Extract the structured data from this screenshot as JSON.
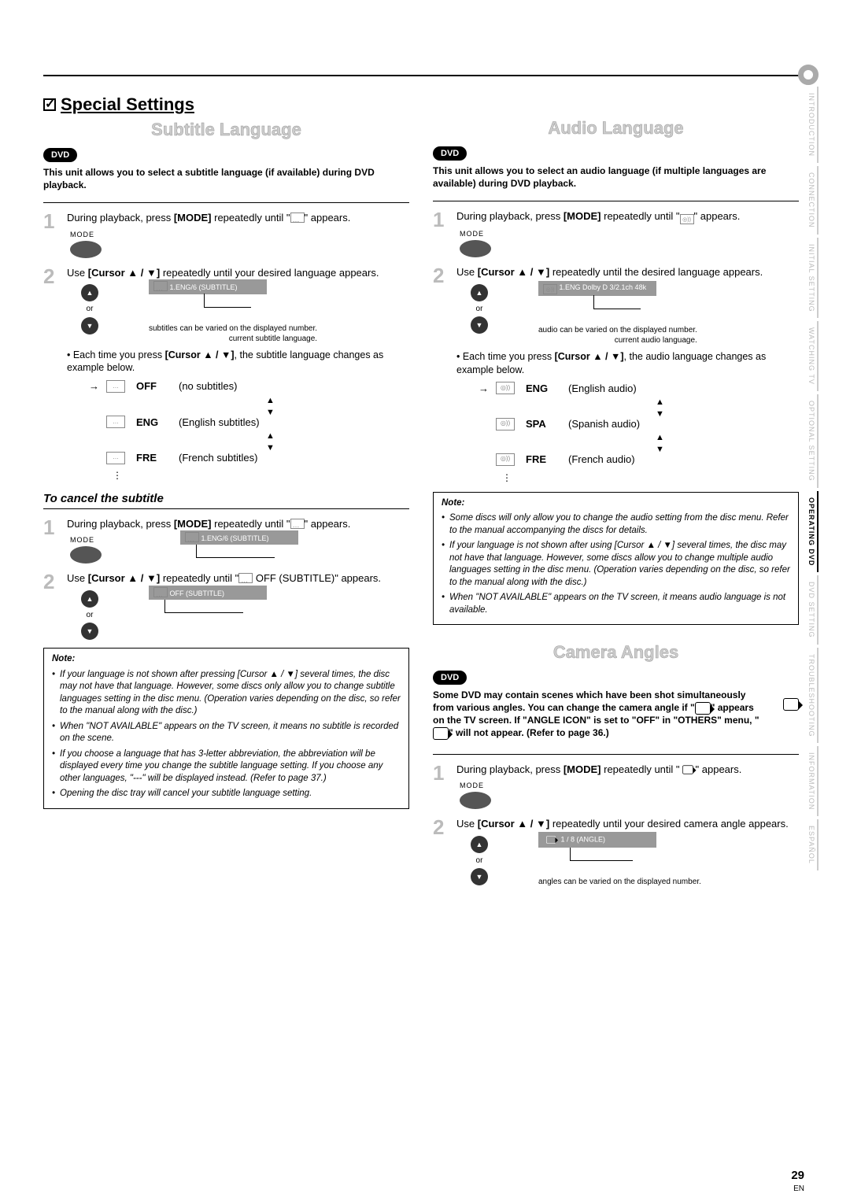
{
  "page_number": "29",
  "page_lang": "EN",
  "main_heading": "Special Settings",
  "side_tabs": [
    {
      "label": "INTRODUCTION",
      "active": false
    },
    {
      "label": "CONNECTION",
      "active": false
    },
    {
      "label": "INITIAL SETTING",
      "active": false
    },
    {
      "label": "WATCHING TV",
      "active": false
    },
    {
      "label": "OPTIONAL SETTING",
      "active": false
    },
    {
      "label": "OPERATING DVD",
      "active": true
    },
    {
      "label": "DVD SETTING",
      "active": false
    },
    {
      "label": "TROUBLESHOOTING",
      "active": false
    },
    {
      "label": "INFORMATION",
      "active": false
    },
    {
      "label": "ESPAÑOL",
      "active": false
    }
  ],
  "dvd_badge": "DVD",
  "mode_label": "MODE",
  "or_label": "or",
  "subtitle": {
    "title": "Subtitle Language",
    "intro": "This unit allows you to select a subtitle language (if available) during DVD playback.",
    "step1": "During playback, press [MODE] repeatedly until \" \" appears.",
    "step2": "Use [Cursor ▲ / ▼] repeatedly until your desired language appears.",
    "osd_text": "1.ENG/6   (SUBTITLE)",
    "osd_caption1": "subtitles can be varied on the displayed number.",
    "osd_caption2": "current subtitle language.",
    "change_text": "Each time you press [Cursor ▲ / ▼], the subtitle language changes as example below.",
    "rows": [
      {
        "code": "OFF",
        "desc": "(no subtitles)"
      },
      {
        "code": "ENG",
        "desc": "(English subtitles)"
      },
      {
        "code": "FRE",
        "desc": "(French subtitles)"
      }
    ],
    "cancel_heading": "To cancel the subtitle",
    "cancel_step1": "During playback, press [MODE] repeatedly until \" \" appears.",
    "cancel_osd": "1.ENG/6   (SUBTITLE)",
    "cancel_step2": "Use [Cursor ▲ / ▼] repeatedly until \" OFF (SUBTITLE)\" appears.",
    "cancel_osd2": "OFF   (SUBTITLE)",
    "note_heading": "Note:",
    "notes": [
      "If your language is not shown after pressing [Cursor ▲ / ▼] several times, the disc may not have that language. However, some discs only allow you to change subtitle languages setting in the disc menu. (Operation varies depending on the disc, so refer to the manual along with the disc.)",
      "When \"NOT AVAILABLE\" appears on the TV screen, it means no subtitle is recorded on the scene.",
      "If you choose a language that has 3-letter abbreviation, the abbreviation will be displayed every time you change the subtitle language setting. If you choose any other languages, \"---\" will be displayed instead. (Refer to page 37.)",
      "Opening the disc tray will cancel your subtitle language setting."
    ]
  },
  "audio": {
    "title": "Audio Language",
    "intro": "This unit allows you to select an audio language (if multiple languages are available) during DVD playback.",
    "step1": "During playback, press [MODE] repeatedly until \" \" appears.",
    "step2": "Use [Cursor ▲ / ▼] repeatedly until the desired language appears.",
    "osd_text": "1.ENG Dolby D 3/2.1ch  48k",
    "osd_caption1": "audio can be varied on the displayed number.",
    "osd_caption2": "current audio language.",
    "change_text": "Each time you press [Cursor ▲ / ▼], the audio language changes as example below.",
    "rows": [
      {
        "code": "ENG",
        "desc": "(English audio)"
      },
      {
        "code": "SPA",
        "desc": "(Spanish audio)"
      },
      {
        "code": "FRE",
        "desc": "(French audio)"
      }
    ],
    "note_heading": "Note:",
    "notes": [
      "Some discs will only allow you to change the audio setting from the disc menu. Refer to the manual accompanying the discs for details.",
      "If your language is not shown after using [Cursor ▲ / ▼] several times, the disc may not have that language. However, some discs allow you to change multiple audio languages setting in the disc menu. (Operation varies depending on the disc, so refer to the manual along with the disc.)",
      "When \"NOT AVAILABLE\" appears on the TV screen, it means audio language is not available."
    ]
  },
  "camera": {
    "title": "Camera Angles",
    "intro": "Some DVD may contain scenes which have been shot simultaneously from various angles. You can change the camera angle if \" \" appears on the TV screen. If \"ANGLE ICON\" is set to \"OFF\" in \"OTHERS\" menu, \" \" will not appear. (Refer to page 36.)",
    "step1": "During playback, press [MODE] repeatedly until \" \" appears.",
    "step2": "Use [Cursor ▲ / ▼] repeatedly until your desired camera angle appears.",
    "osd_text": "1 / 8   (ANGLE)",
    "osd_caption": "angles can be varied on the displayed number."
  }
}
